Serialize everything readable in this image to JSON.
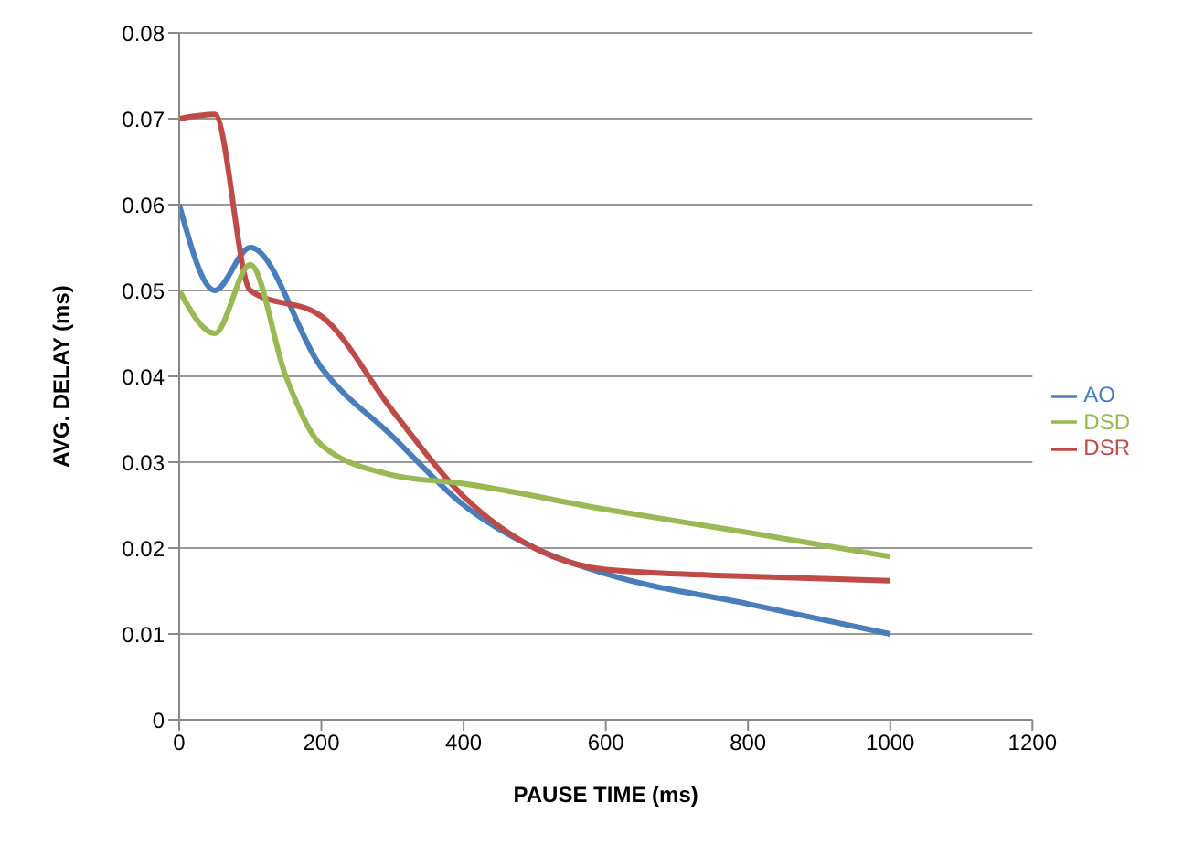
{
  "chart_data": {
    "type": "line",
    "xlabel": "PAUSE TIME (ms)",
    "ylabel": "AVG. DELAY (ms)",
    "xlim": [
      0,
      1200
    ],
    "xticks": [
      0,
      200,
      400,
      600,
      800,
      1000,
      1200
    ],
    "ylim": [
      0,
      0.08
    ],
    "yticks": [
      0,
      0.01,
      0.02,
      0.03,
      0.04,
      0.05,
      0.06,
      0.07,
      0.08
    ],
    "grid": "y",
    "legend": "right",
    "marker": "none",
    "line_style": "solid",
    "series": [
      {
        "name": "AO",
        "color": "#4a7ebb",
        "x": [
          0,
          50,
          100,
          200,
          300,
          400,
          500,
          600,
          800,
          1000
        ],
        "values": [
          0.06,
          0.05,
          0.055,
          0.041,
          0.033,
          0.025,
          0.02,
          0.017,
          0.0135,
          0.01
        ]
      },
      {
        "name": "DSR",
        "color": "#be4b48",
        "x": [
          0,
          50,
          100,
          200,
          300,
          400,
          500,
          600,
          800,
          1000
        ],
        "values": [
          0.07,
          0.0705,
          0.05,
          0.047,
          0.036,
          0.026,
          0.02,
          0.0175,
          0.0167,
          0.0162
        ]
      },
      {
        "name": "DSD",
        "color": "#98b954",
        "x": [
          0,
          50,
          100,
          150,
          200,
          300,
          400,
          600,
          800,
          1000
        ],
        "values": [
          0.05,
          0.045,
          0.053,
          0.04,
          0.032,
          0.0285,
          0.0275,
          0.0245,
          0.0218,
          0.019
        ]
      }
    ]
  }
}
